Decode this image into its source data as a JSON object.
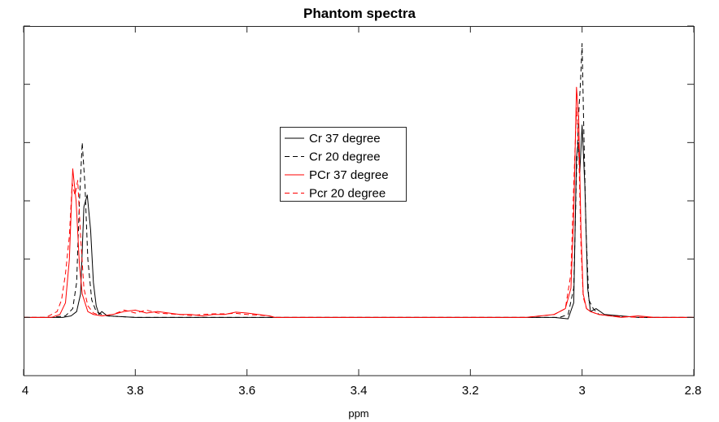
{
  "chart_data": {
    "type": "line",
    "title": "Phantom spectra",
    "xlabel": "ppm",
    "ylabel": "",
    "xlim": [
      4,
      2.8
    ],
    "x_reversed": true,
    "ylim": [
      -0.2,
      1.0
    ],
    "xticks": [
      4,
      3.8,
      3.6,
      3.4,
      3.2,
      3,
      2.8
    ],
    "xtick_labels": [
      "4",
      "3.8",
      "3.6",
      "3.4",
      "3.2",
      "3",
      "2.8"
    ],
    "yticks": [
      -0.2,
      0,
      0.2,
      0.4,
      0.6,
      0.8,
      1.0
    ],
    "ytick_labels_visible": false,
    "legend_position": "center",
    "series": [
      {
        "name": "Cr 37 degree",
        "color": "#000000",
        "style": "solid",
        "x": [
          4.0,
          3.96,
          3.93,
          3.915,
          3.905,
          3.898,
          3.892,
          3.886,
          3.88,
          3.875,
          3.87,
          3.865,
          3.86,
          3.85,
          3.8,
          3.7,
          3.6,
          3.55,
          3.5,
          3.4,
          3.2,
          3.1,
          3.05,
          3.025,
          3.015,
          3.01,
          3.007,
          3.004,
          3.0,
          2.995,
          2.99,
          2.985,
          2.975,
          2.96,
          2.9,
          2.8
        ],
        "y": [
          0.0,
          0.0,
          0.0,
          0.005,
          0.02,
          0.08,
          0.38,
          0.42,
          0.3,
          0.12,
          0.04,
          0.01,
          0.02,
          0.005,
          0.0,
          0.0,
          0.0,
          0.0,
          0.0,
          0.0,
          0.0,
          0.0,
          0.0,
          -0.005,
          0.05,
          0.55,
          0.6,
          0.5,
          0.66,
          0.45,
          0.1,
          0.02,
          0.03,
          0.01,
          0.0,
          0.0
        ]
      },
      {
        "name": "Cr 20 degree",
        "color": "#000000",
        "style": "dashed",
        "x": [
          4.0,
          3.95,
          3.925,
          3.912,
          3.905,
          3.9,
          3.895,
          3.89,
          3.885,
          3.878,
          3.87,
          3.86,
          3.85,
          3.8,
          3.7,
          3.6,
          3.5,
          3.4,
          3.2,
          3.1,
          3.04,
          3.025,
          3.015,
          3.01,
          3.006,
          3.003,
          3.0,
          2.997,
          2.993,
          2.988,
          2.98,
          2.97,
          2.9,
          2.8
        ],
        "y": [
          0.0,
          0.0,
          0.005,
          0.03,
          0.12,
          0.4,
          0.6,
          0.45,
          0.2,
          0.06,
          0.02,
          0.01,
          0.005,
          0.0,
          0.0,
          0.0,
          0.0,
          0.0,
          0.0,
          0.0,
          0.0,
          0.01,
          0.1,
          0.5,
          0.7,
          0.8,
          0.94,
          0.65,
          0.3,
          0.06,
          0.03,
          0.01,
          0.0,
          0.0
        ]
      },
      {
        "name": "PCr 37 degree",
        "color": "#ff0000",
        "style": "solid",
        "x": [
          4.0,
          3.95,
          3.935,
          3.925,
          3.918,
          3.912,
          3.906,
          3.9,
          3.895,
          3.89,
          3.885,
          3.875,
          3.86,
          3.84,
          3.82,
          3.8,
          3.78,
          3.76,
          3.74,
          3.72,
          3.7,
          3.68,
          3.66,
          3.64,
          3.62,
          3.6,
          3.58,
          3.56,
          3.55,
          3.5,
          3.4,
          3.2,
          3.1,
          3.05,
          3.03,
          3.02,
          3.015,
          3.01,
          3.006,
          3.002,
          2.998,
          2.992,
          2.985,
          2.97,
          2.95,
          2.93,
          2.9,
          2.87,
          2.85,
          2.8
        ],
        "y": [
          0.0,
          0.0,
          0.01,
          0.05,
          0.2,
          0.51,
          0.4,
          0.18,
          0.08,
          0.05,
          0.02,
          0.01,
          0.005,
          0.01,
          0.02,
          0.025,
          0.015,
          0.02,
          0.015,
          0.01,
          0.01,
          0.005,
          0.01,
          0.01,
          0.018,
          0.015,
          0.01,
          0.005,
          0.0,
          0.0,
          0.0,
          0.0,
          0.0,
          0.01,
          0.03,
          0.1,
          0.35,
          0.79,
          0.68,
          0.3,
          0.08,
          0.03,
          0.02,
          0.01,
          0.005,
          0.0,
          0.005,
          0.0,
          0.0,
          0.0
        ]
      },
      {
        "name": "Pcr 20 degree",
        "color": "#ff0000",
        "style": "dashed",
        "x": [
          4.0,
          3.96,
          3.94,
          3.932,
          3.925,
          3.918,
          3.913,
          3.908,
          3.903,
          3.898,
          3.892,
          3.885,
          3.875,
          3.86,
          3.84,
          3.82,
          3.8,
          3.78,
          3.76,
          3.74,
          3.72,
          3.7,
          3.68,
          3.66,
          3.64,
          3.62,
          3.6,
          3.58,
          3.56,
          3.55,
          3.5,
          3.4,
          3.2,
          3.1,
          3.05,
          3.03,
          3.02,
          3.015,
          3.01,
          3.006,
          3.002,
          2.998,
          2.992,
          2.985,
          2.97,
          2.95,
          2.9,
          2.85,
          2.8
        ],
        "y": [
          0.0,
          0.0,
          0.02,
          0.06,
          0.15,
          0.28,
          0.46,
          0.42,
          0.47,
          0.28,
          0.1,
          0.04,
          0.015,
          0.005,
          0.01,
          0.025,
          0.015,
          0.025,
          0.015,
          0.012,
          0.01,
          0.006,
          0.01,
          0.012,
          0.012,
          0.014,
          0.01,
          0.008,
          0.005,
          0.0,
          0.0,
          0.0,
          0.0,
          0.0,
          0.01,
          0.03,
          0.15,
          0.45,
          0.72,
          0.58,
          0.25,
          0.07,
          0.03,
          0.02,
          0.01,
          0.005,
          0.0,
          0.0,
          0.0
        ]
      }
    ]
  }
}
